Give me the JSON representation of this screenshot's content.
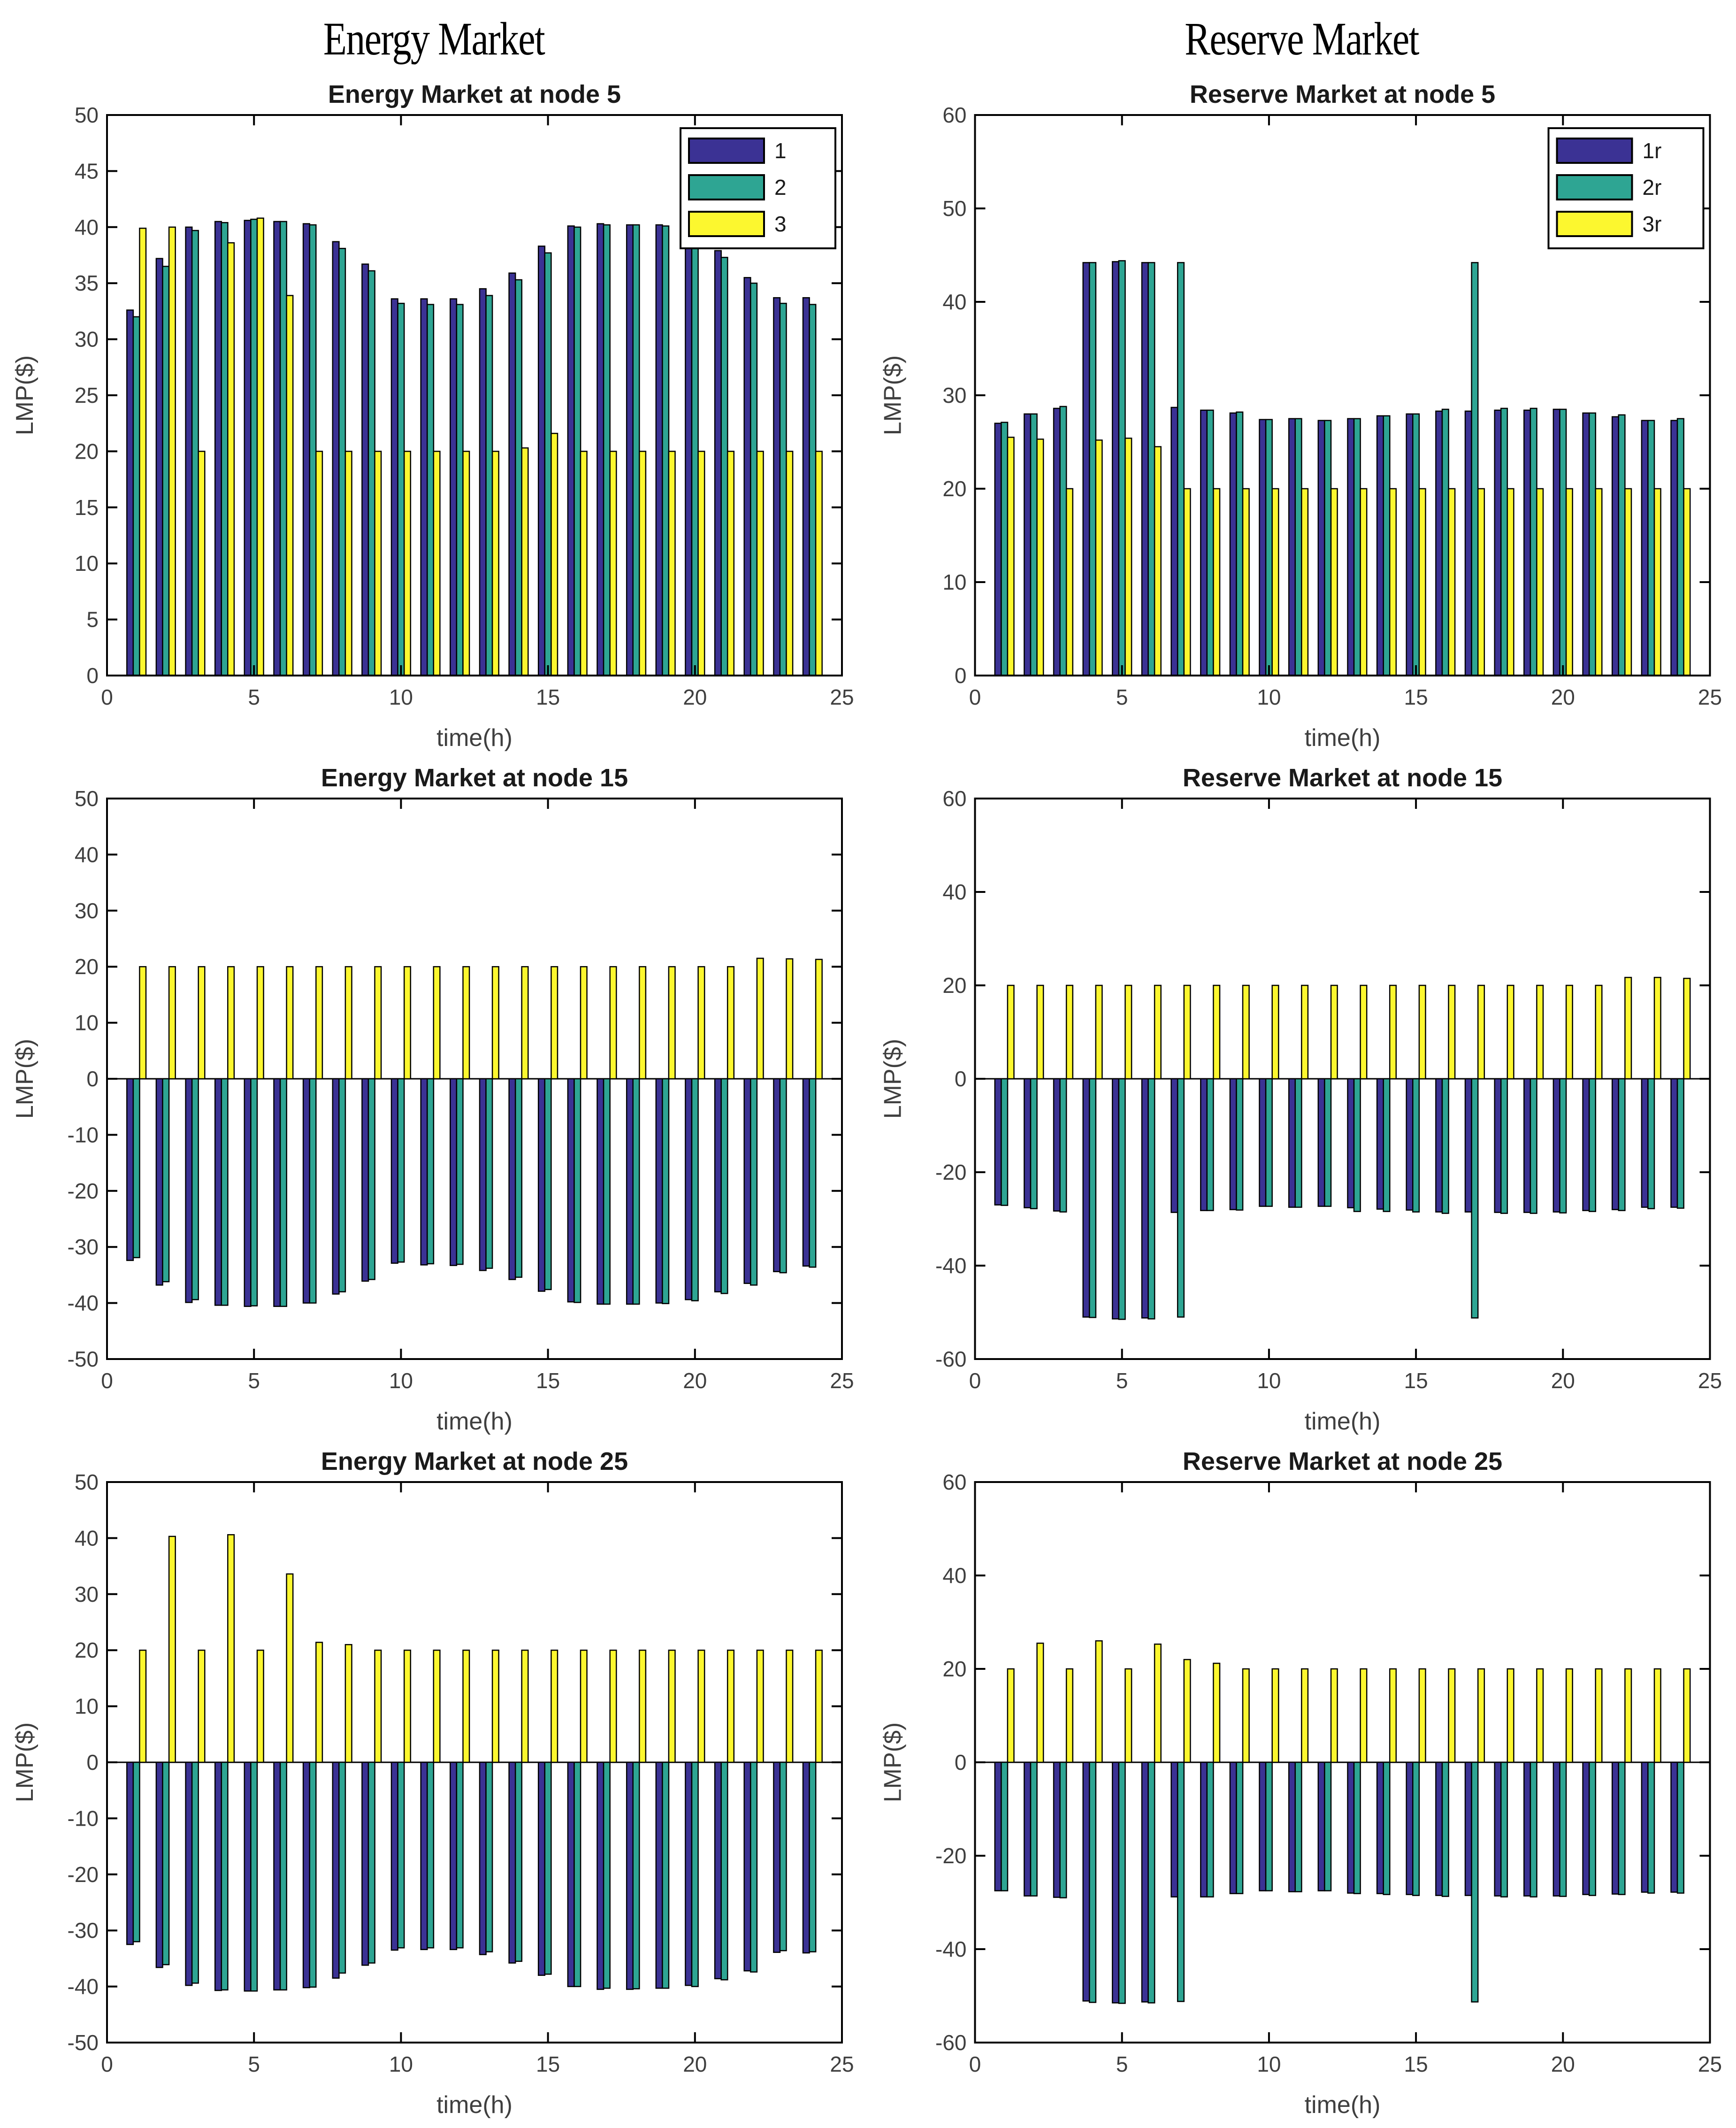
{
  "headers": [
    {
      "label": "Energy Market"
    },
    {
      "label": "Reserve Market"
    }
  ],
  "colors": {
    "series1": "#3B3294",
    "series2": "#2EA593",
    "series3": "#FCF72F",
    "axis": "#000000",
    "tick_text": "#3F3F3F",
    "title_text": "#1A1A1A",
    "bar_edge": "#000000",
    "legend_bg": "#FFFFFF"
  },
  "chart_data": [
    {
      "type": "bar",
      "title": "Energy Market at node 5",
      "xlabel": "time(h)",
      "ylabel": "LMP($)",
      "xlim": [
        0,
        25
      ],
      "ylim": [
        0,
        50
      ],
      "xticks": [
        0,
        5,
        10,
        15,
        20,
        25
      ],
      "yticks": [
        0,
        5,
        10,
        15,
        20,
        25,
        30,
        35,
        40,
        45,
        50
      ],
      "legend": [
        "1",
        "2",
        "3"
      ],
      "legend_position": "top-right",
      "grid": false,
      "x": [
        1,
        2,
        3,
        4,
        5,
        6,
        7,
        8,
        9,
        10,
        11,
        12,
        13,
        14,
        15,
        16,
        17,
        18,
        19,
        20,
        21,
        22,
        23,
        24
      ],
      "series": [
        {
          "name": "1",
          "color_key": "series1",
          "values": [
            32.6,
            37.2,
            40.0,
            40.5,
            40.6,
            40.5,
            40.3,
            38.7,
            36.7,
            33.6,
            33.6,
            33.6,
            34.5,
            35.9,
            38.3,
            40.1,
            40.3,
            40.2,
            40.2,
            40.1,
            37.9,
            35.5,
            33.7,
            33.7
          ]
        },
        {
          "name": "2",
          "color_key": "series2",
          "values": [
            32.0,
            36.5,
            39.7,
            40.4,
            40.7,
            40.5,
            40.2,
            38.1,
            36.1,
            33.2,
            33.1,
            33.1,
            33.9,
            35.3,
            37.7,
            40.0,
            40.2,
            40.2,
            40.1,
            39.4,
            37.3,
            35.0,
            33.2,
            33.1
          ]
        },
        {
          "name": "3",
          "color_key": "series3",
          "values": [
            39.9,
            40.0,
            20.0,
            38.6,
            40.8,
            33.9,
            20.0,
            20.0,
            20.0,
            20.0,
            20.0,
            20.0,
            20.0,
            20.3,
            21.6,
            20.0,
            20.0,
            20.0,
            20.0,
            20.0,
            20.0,
            20.0,
            20.0,
            20.0
          ]
        }
      ]
    },
    {
      "type": "bar",
      "title": "Reserve Market at node 5",
      "xlabel": "time(h)",
      "ylabel": "LMP($)",
      "xlim": [
        0,
        25
      ],
      "ylim": [
        0,
        60
      ],
      "xticks": [
        0,
        5,
        10,
        15,
        20,
        25
      ],
      "yticks": [
        0,
        10,
        20,
        30,
        40,
        50,
        60
      ],
      "legend": [
        "1r",
        "2r",
        "3r"
      ],
      "legend_position": "top-right",
      "grid": false,
      "x": [
        1,
        2,
        3,
        4,
        5,
        6,
        7,
        8,
        9,
        10,
        11,
        12,
        13,
        14,
        15,
        16,
        17,
        18,
        19,
        20,
        21,
        22,
        23,
        24
      ],
      "series": [
        {
          "name": "1r",
          "color_key": "series1",
          "values": [
            27.0,
            28.0,
            28.6,
            44.2,
            44.3,
            44.2,
            28.7,
            28.4,
            28.1,
            27.4,
            27.5,
            27.3,
            27.5,
            27.8,
            28.0,
            28.3,
            28.3,
            28.4,
            28.4,
            28.5,
            28.1,
            27.7,
            27.3,
            27.3
          ]
        },
        {
          "name": "2r",
          "color_key": "series2",
          "values": [
            27.1,
            28.0,
            28.8,
            44.2,
            44.4,
            44.2,
            44.2,
            28.4,
            28.2,
            27.4,
            27.5,
            27.3,
            27.5,
            27.8,
            28.0,
            28.5,
            44.2,
            28.6,
            28.6,
            28.5,
            28.1,
            27.9,
            27.3,
            27.5
          ]
        },
        {
          "name": "3r",
          "color_key": "series3",
          "values": [
            25.5,
            25.3,
            20.0,
            25.2,
            25.4,
            24.5,
            20.0,
            20.0,
            20.0,
            20.0,
            20.0,
            20.0,
            20.0,
            20.0,
            20.0,
            20.0,
            20.0,
            20.0,
            20.0,
            20.0,
            20.0,
            20.0,
            20.0,
            20.0
          ]
        }
      ]
    },
    {
      "type": "bar",
      "title": "Energy Market at node 15",
      "xlabel": "time(h)",
      "ylabel": "LMP($)",
      "xlim": [
        0,
        25
      ],
      "ylim": [
        -50,
        50
      ],
      "xticks": [
        0,
        5,
        10,
        15,
        20,
        25
      ],
      "yticks": [
        -50,
        -40,
        -30,
        -20,
        -10,
        0,
        10,
        20,
        30,
        40,
        50
      ],
      "legend": null,
      "grid": false,
      "x": [
        1,
        2,
        3,
        4,
        5,
        6,
        7,
        8,
        9,
        10,
        11,
        12,
        13,
        14,
        15,
        16,
        17,
        18,
        19,
        20,
        21,
        22,
        23,
        24
      ],
      "series": [
        {
          "name": "1",
          "color_key": "series1",
          "values": [
            -32.4,
            -36.8,
            -39.9,
            -40.4,
            -40.6,
            -40.6,
            -40.0,
            -38.4,
            -36.1,
            -32.9,
            -33.2,
            -33.3,
            -34.2,
            -35.8,
            -37.9,
            -39.8,
            -40.2,
            -40.2,
            -40.0,
            -39.4,
            -38.0,
            -36.5,
            -34.4,
            -33.4
          ]
        },
        {
          "name": "2",
          "color_key": "series2",
          "values": [
            -31.9,
            -36.2,
            -39.4,
            -40.4,
            -40.5,
            -40.6,
            -40.0,
            -38.0,
            -35.8,
            -32.7,
            -33.0,
            -33.1,
            -33.8,
            -35.4,
            -37.6,
            -39.9,
            -40.2,
            -40.2,
            -40.1,
            -39.6,
            -38.3,
            -36.8,
            -34.6,
            -33.6
          ]
        },
        {
          "name": "3",
          "color_key": "series3",
          "values": [
            20.0,
            20.0,
            20.0,
            20.0,
            20.0,
            20.0,
            20.0,
            20.0,
            20.0,
            20.0,
            20.0,
            20.0,
            20.0,
            20.0,
            20.0,
            20.0,
            20.0,
            20.0,
            20.0,
            20.0,
            20.0,
            21.5,
            21.4,
            21.3
          ]
        }
      ]
    },
    {
      "type": "bar",
      "title": "Reserve Market at node 15",
      "xlabel": "time(h)",
      "ylabel": "LMP($)",
      "xlim": [
        0,
        25
      ],
      "ylim": [
        -60,
        60
      ],
      "xticks": [
        0,
        5,
        10,
        15,
        20,
        25
      ],
      "yticks": [
        -60,
        -40,
        -20,
        0,
        20,
        40,
        60
      ],
      "legend": null,
      "grid": false,
      "x": [
        1,
        2,
        3,
        4,
        5,
        6,
        7,
        8,
        9,
        10,
        11,
        12,
        13,
        14,
        15,
        16,
        17,
        18,
        19,
        20,
        21,
        22,
        23,
        24
      ],
      "series": [
        {
          "name": "1r",
          "color_key": "series1",
          "values": [
            -27.0,
            -27.6,
            -28.3,
            -51.0,
            -51.4,
            -51.2,
            -28.6,
            -28.2,
            -28.0,
            -27.3,
            -27.5,
            -27.3,
            -27.6,
            -27.9,
            -28.1,
            -28.5,
            -28.5,
            -28.6,
            -28.6,
            -28.5,
            -28.2,
            -28.0,
            -27.5,
            -27.5
          ]
        },
        {
          "name": "2r",
          "color_key": "series2",
          "values": [
            -27.1,
            -27.8,
            -28.5,
            -51.1,
            -51.5,
            -51.4,
            -51.0,
            -28.2,
            -28.1,
            -27.3,
            -27.5,
            -27.3,
            -28.4,
            -28.4,
            -28.5,
            -28.8,
            -51.2,
            -28.8,
            -28.8,
            -28.7,
            -28.4,
            -28.2,
            -27.8,
            -27.7
          ]
        },
        {
          "name": "3r",
          "color_key": "series3",
          "values": [
            20.0,
            20.0,
            20.0,
            20.0,
            20.0,
            20.0,
            20.0,
            20.0,
            20.0,
            20.0,
            20.0,
            20.0,
            20.0,
            20.0,
            20.0,
            20.0,
            20.0,
            20.0,
            20.0,
            20.0,
            20.0,
            21.7,
            21.7,
            21.5
          ]
        }
      ]
    },
    {
      "type": "bar",
      "title": "Energy Market at node 25",
      "xlabel": "time(h)",
      "ylabel": "LMP($)",
      "xlim": [
        0,
        25
      ],
      "ylim": [
        -50,
        50
      ],
      "xticks": [
        0,
        5,
        10,
        15,
        20,
        25
      ],
      "yticks": [
        -50,
        -40,
        -30,
        -20,
        -10,
        0,
        10,
        20,
        30,
        40,
        50
      ],
      "legend": null,
      "grid": false,
      "x": [
        1,
        2,
        3,
        4,
        5,
        6,
        7,
        8,
        9,
        10,
        11,
        12,
        13,
        14,
        15,
        16,
        17,
        18,
        19,
        20,
        21,
        22,
        23,
        24
      ],
      "series": [
        {
          "name": "1",
          "color_key": "series1",
          "values": [
            -32.5,
            -36.6,
            -39.8,
            -40.7,
            -40.8,
            -40.6,
            -40.2,
            -38.5,
            -36.2,
            -33.5,
            -33.4,
            -33.4,
            -34.3,
            -35.8,
            -38.0,
            -40.0,
            -40.5,
            -40.5,
            -40.3,
            -39.8,
            -38.6,
            -37.2,
            -33.9,
            -34.0
          ]
        },
        {
          "name": "2",
          "color_key": "series2",
          "values": [
            -32.0,
            -36.1,
            -39.4,
            -40.6,
            -40.8,
            -40.6,
            -40.1,
            -37.6,
            -35.8,
            -33.1,
            -33.1,
            -33.1,
            -33.8,
            -35.5,
            -37.8,
            -40.0,
            -40.3,
            -40.4,
            -40.3,
            -40.0,
            -38.8,
            -37.4,
            -33.6,
            -33.8
          ]
        },
        {
          "name": "3",
          "color_key": "series3",
          "values": [
            20.0,
            40.3,
            20.0,
            40.6,
            20.0,
            33.6,
            21.4,
            21.0,
            20.0,
            20.0,
            20.0,
            20.0,
            20.0,
            20.0,
            20.0,
            20.0,
            20.0,
            20.0,
            20.0,
            20.0,
            20.0,
            20.0,
            20.0,
            20.0
          ]
        }
      ]
    },
    {
      "type": "bar",
      "title": "Reserve Market at node 25",
      "xlabel": "time(h)",
      "ylabel": "LMP($)",
      "xlim": [
        0,
        25
      ],
      "ylim": [
        -60,
        60
      ],
      "xticks": [
        0,
        5,
        10,
        15,
        20,
        25
      ],
      "yticks": [
        -60,
        -40,
        -20,
        0,
        20,
        40,
        60
      ],
      "legend": null,
      "grid": false,
      "x": [
        1,
        2,
        3,
        4,
        5,
        6,
        7,
        8,
        9,
        10,
        11,
        12,
        13,
        14,
        15,
        16,
        17,
        18,
        19,
        20,
        21,
        22,
        23,
        24
      ],
      "series": [
        {
          "name": "1r",
          "color_key": "series1",
          "values": [
            -27.5,
            -28.6,
            -28.9,
            -51.1,
            -51.5,
            -51.3,
            -28.8,
            -28.8,
            -28.1,
            -27.5,
            -27.7,
            -27.5,
            -28.0,
            -28.1,
            -28.3,
            -28.5,
            -28.5,
            -28.6,
            -28.6,
            -28.6,
            -28.3,
            -28.2,
            -27.8,
            -27.8
          ]
        },
        {
          "name": "2r",
          "color_key": "series2",
          "values": [
            -27.5,
            -28.6,
            -29.0,
            -51.4,
            -51.6,
            -51.5,
            -51.2,
            -28.8,
            -28.1,
            -27.5,
            -27.7,
            -27.5,
            -28.1,
            -28.3,
            -28.5,
            -28.7,
            -51.3,
            -28.8,
            -28.8,
            -28.7,
            -28.5,
            -28.3,
            -28.0,
            -28.0
          ]
        },
        {
          "name": "3r",
          "color_key": "series3",
          "values": [
            20.0,
            25.5,
            20.0,
            26.0,
            20.0,
            25.3,
            22.0,
            21.2,
            20.0,
            20.0,
            20.0,
            20.0,
            20.0,
            20.0,
            20.0,
            20.0,
            20.0,
            20.0,
            20.0,
            20.0,
            20.0,
            20.0,
            20.0,
            20.0
          ]
        }
      ]
    }
  ]
}
